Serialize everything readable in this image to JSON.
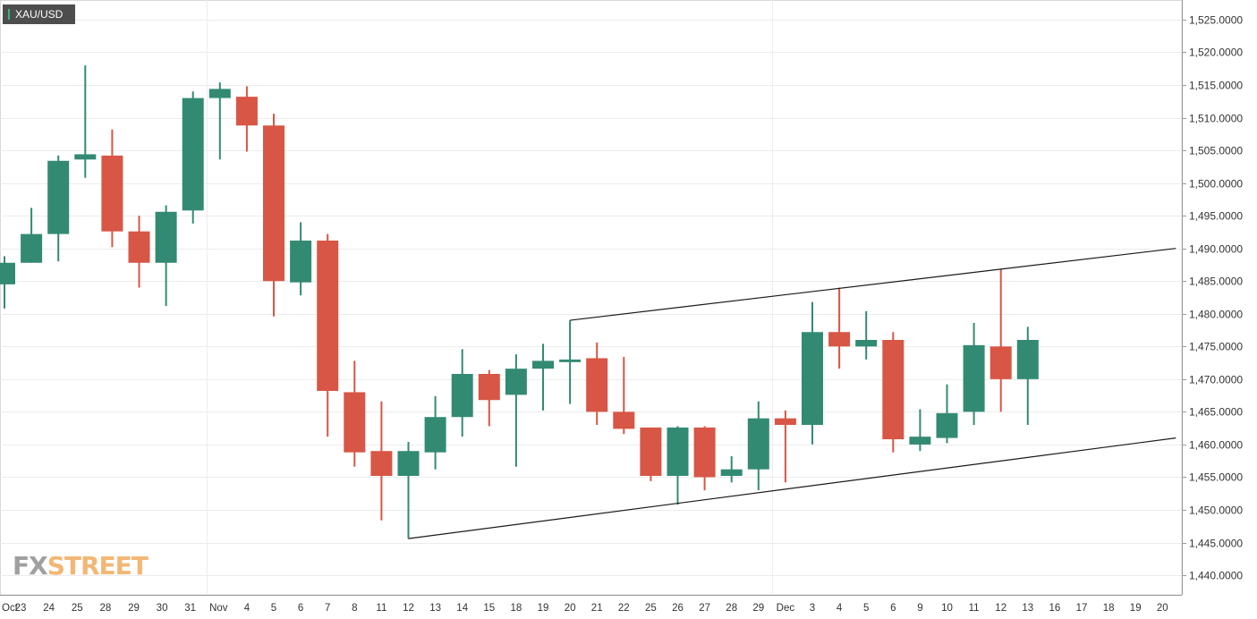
{
  "symbol": "XAU/USD",
  "logo": {
    "part1": "FX",
    "part2": "STREET"
  },
  "colors": {
    "up": "#338a73",
    "down": "#d75645",
    "grid": "#ececec",
    "trendline": "#1a1a1a",
    "axis_text": "#333333"
  },
  "chart_data": {
    "type": "candlestick",
    "y_axis": {
      "min": 1437,
      "max": 1528,
      "ticks": [
        1440,
        1445,
        1450,
        1455,
        1460,
        1465,
        1470,
        1475,
        1480,
        1485,
        1490,
        1495,
        1500,
        1505,
        1510,
        1515,
        1520,
        1525
      ],
      "tick_labels": [
        "1,440.0000",
        "1,445.0000",
        "1,450.0000",
        "1,455.0000",
        "1,460.0000",
        "1,465.0000",
        "1,470.0000",
        "1,475.0000",
        "1,480.0000",
        "1,485.0000",
        "1,490.0000",
        "1,495.0000",
        "1,500.0000",
        "1,505.0000",
        "1,510.0000",
        "1,515.0000",
        "1,520.0000",
        "1,525.0000"
      ],
      "position": "right"
    },
    "x_labels": [
      "Oct",
      "23",
      "24",
      "25",
      "28",
      "29",
      "30",
      "31",
      "Nov",
      "4",
      "5",
      "6",
      "7",
      "8",
      "11",
      "12",
      "13",
      "14",
      "15",
      "18",
      "19",
      "20",
      "21",
      "22",
      "25",
      "26",
      "27",
      "28",
      "29",
      "Dec",
      "3",
      "4",
      "5",
      "6",
      "9",
      "10",
      "11",
      "12",
      "13",
      "16",
      "17",
      "18",
      "19",
      "20"
    ],
    "grid": true,
    "candles": [
      {
        "date": "Oct 22",
        "open": 1484.5,
        "high": 1488.8,
        "low": 1480.8,
        "close": 1487.8
      },
      {
        "date": "Oct 23",
        "open": 1487.8,
        "high": 1496.2,
        "low": 1487.8,
        "close": 1492.2
      },
      {
        "date": "Oct 24",
        "open": 1492.2,
        "high": 1504.2,
        "low": 1488.0,
        "close": 1503.4
      },
      {
        "date": "Oct 25",
        "open": 1503.6,
        "high": 1518.0,
        "low": 1500.8,
        "close": 1504.4
      },
      {
        "date": "Oct 28",
        "open": 1504.2,
        "high": 1508.2,
        "low": 1490.2,
        "close": 1492.6
      },
      {
        "date": "Oct 29",
        "open": 1492.6,
        "high": 1495.0,
        "low": 1484.0,
        "close": 1487.8
      },
      {
        "date": "Oct 30",
        "open": 1487.8,
        "high": 1496.6,
        "low": 1481.2,
        "close": 1495.6
      },
      {
        "date": "Oct 31",
        "open": 1495.8,
        "high": 1514.0,
        "low": 1493.8,
        "close": 1513.0
      },
      {
        "date": "Nov 1",
        "open": 1513.0,
        "high": 1515.4,
        "low": 1503.6,
        "close": 1514.4
      },
      {
        "date": "Nov 4",
        "open": 1513.2,
        "high": 1514.8,
        "low": 1504.8,
        "close": 1508.8
      },
      {
        "date": "Nov 5",
        "open": 1508.8,
        "high": 1510.6,
        "low": 1479.6,
        "close": 1485.0
      },
      {
        "date": "Nov 6",
        "open": 1484.8,
        "high": 1494.0,
        "low": 1482.8,
        "close": 1491.2
      },
      {
        "date": "Nov 7",
        "open": 1491.2,
        "high": 1492.2,
        "low": 1461.2,
        "close": 1468.2
      },
      {
        "date": "Nov 8",
        "open": 1468.0,
        "high": 1472.8,
        "low": 1456.6,
        "close": 1458.8
      },
      {
        "date": "Nov 11",
        "open": 1459.0,
        "high": 1466.6,
        "low": 1448.4,
        "close": 1455.2
      },
      {
        "date": "Nov 12",
        "open": 1455.2,
        "high": 1460.4,
        "low": 1445.6,
        "close": 1459.0
      },
      {
        "date": "Nov 13",
        "open": 1458.8,
        "high": 1467.4,
        "low": 1456.2,
        "close": 1464.2
      },
      {
        "date": "Nov 14",
        "open": 1464.2,
        "high": 1474.6,
        "low": 1461.2,
        "close": 1470.8
      },
      {
        "date": "Nov 15",
        "open": 1470.8,
        "high": 1471.4,
        "low": 1462.8,
        "close": 1466.8
      },
      {
        "date": "Nov 18",
        "open": 1467.6,
        "high": 1473.8,
        "low": 1456.6,
        "close": 1471.6
      },
      {
        "date": "Nov 19",
        "open": 1471.6,
        "high": 1475.4,
        "low": 1465.2,
        "close": 1472.8
      },
      {
        "date": "Nov 20",
        "open": 1472.6,
        "high": 1479.0,
        "low": 1466.2,
        "close": 1473.0
      },
      {
        "date": "Nov 21",
        "open": 1473.2,
        "high": 1475.6,
        "low": 1463.0,
        "close": 1465.0
      },
      {
        "date": "Nov 22",
        "open": 1465.0,
        "high": 1473.4,
        "low": 1461.6,
        "close": 1462.4
      },
      {
        "date": "Nov 25",
        "open": 1462.6,
        "high": 1462.6,
        "low": 1454.4,
        "close": 1455.2
      },
      {
        "date": "Nov 26",
        "open": 1455.2,
        "high": 1462.8,
        "low": 1450.8,
        "close": 1462.6
      },
      {
        "date": "Nov 27",
        "open": 1462.6,
        "high": 1462.8,
        "low": 1453.0,
        "close": 1455.0
      },
      {
        "date": "Nov 28",
        "open": 1455.2,
        "high": 1458.2,
        "low": 1454.2,
        "close": 1456.2
      },
      {
        "date": "Nov 29",
        "open": 1456.2,
        "high": 1466.6,
        "low": 1453.0,
        "close": 1464.0
      },
      {
        "date": "Dec 2",
        "open": 1464.0,
        "high": 1465.2,
        "low": 1454.2,
        "close": 1463.0
      },
      {
        "date": "Dec 3",
        "open": 1463.0,
        "high": 1481.8,
        "low": 1460.0,
        "close": 1477.2
      },
      {
        "date": "Dec 4",
        "open": 1477.2,
        "high": 1484.0,
        "low": 1471.6,
        "close": 1475.0
      },
      {
        "date": "Dec 5",
        "open": 1475.0,
        "high": 1480.4,
        "low": 1473.0,
        "close": 1476.0
      },
      {
        "date": "Dec 6",
        "open": 1476.0,
        "high": 1477.2,
        "low": 1458.8,
        "close": 1460.8
      },
      {
        "date": "Dec 9",
        "open": 1460.0,
        "high": 1465.4,
        "low": 1459.0,
        "close": 1461.2
      },
      {
        "date": "Dec 10",
        "open": 1461.0,
        "high": 1469.2,
        "low": 1460.2,
        "close": 1464.8
      },
      {
        "date": "Dec 11",
        "open": 1465.0,
        "high": 1478.6,
        "low": 1463.0,
        "close": 1475.2
      },
      {
        "date": "Dec 12",
        "open": 1475.0,
        "high": 1486.8,
        "low": 1465.0,
        "close": 1470.0
      },
      {
        "date": "Dec 13",
        "open": 1470.0,
        "high": 1478.0,
        "low": 1463.0,
        "close": 1476.0
      }
    ],
    "trendlines": [
      {
        "from": {
          "date": "Nov 20",
          "price": 1479.0
        },
        "to": {
          "date": "Dec 20",
          "price": 1490.0
        }
      },
      {
        "from": {
          "date": "Nov 12",
          "price": 1445.6
        },
        "to": {
          "date": "Dec 20",
          "price": 1461.0
        }
      }
    ]
  }
}
